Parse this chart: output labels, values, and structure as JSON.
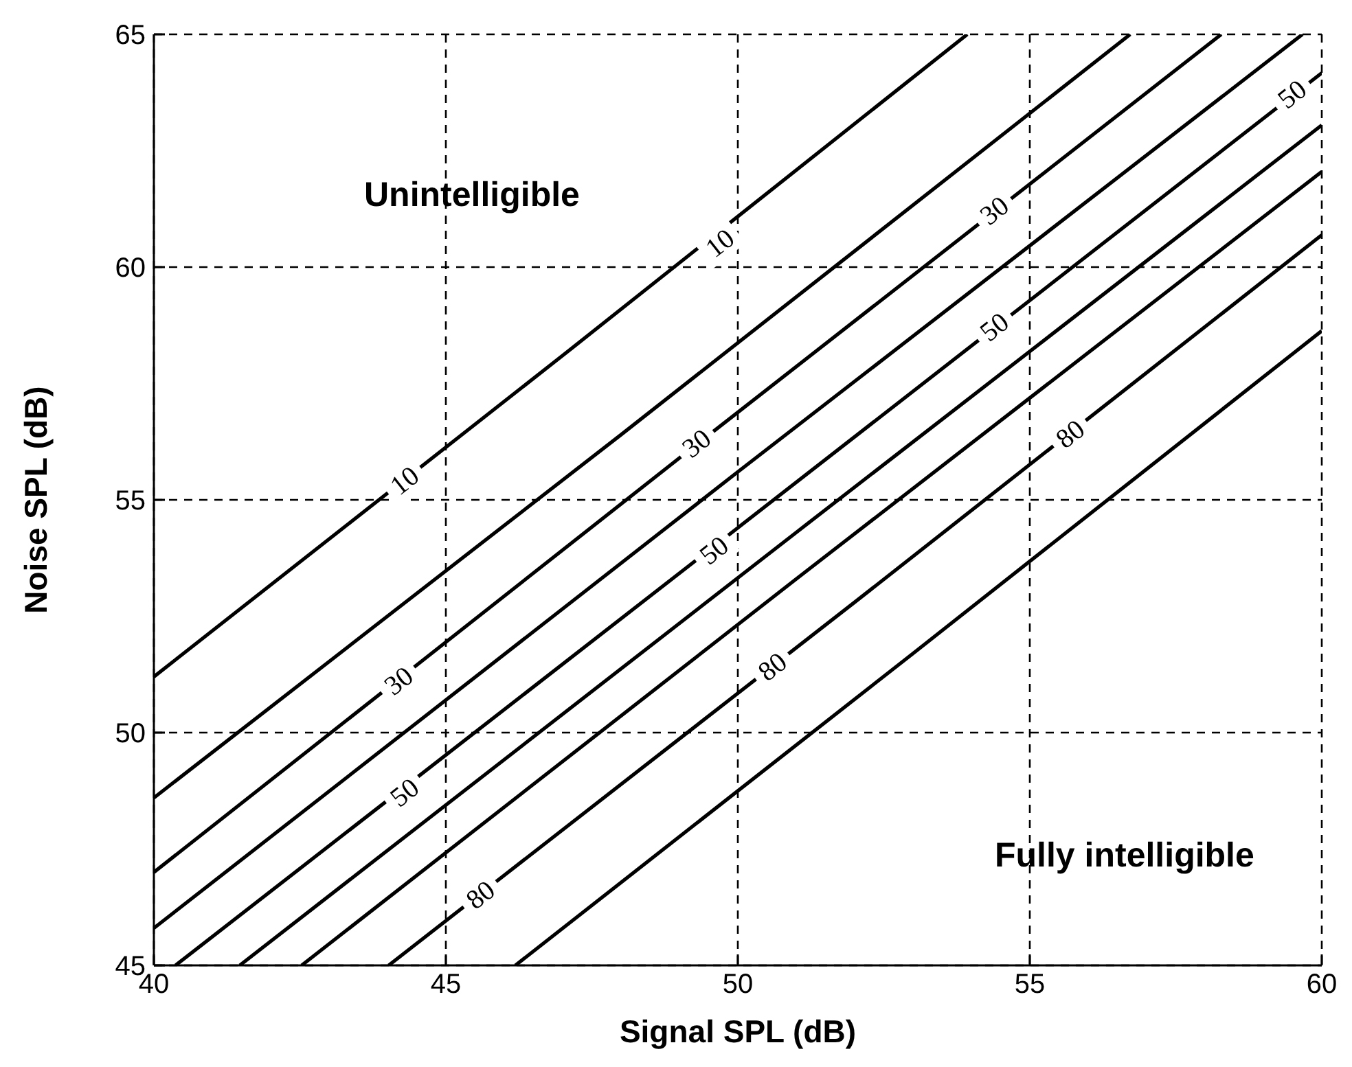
{
  "chart_data": {
    "type": "line",
    "xlabel": "Signal SPL (dB)",
    "ylabel": "Noise SPL (dB)",
    "xlim": [
      40,
      60
    ],
    "ylim": [
      45,
      65
    ],
    "xticks": [
      40,
      45,
      50,
      55,
      60
    ],
    "yticks": [
      45,
      50,
      55,
      60,
      65
    ],
    "grid": true,
    "marker": "none",
    "line_style": "solid",
    "series": [
      {
        "color": "#000000",
        "x": [
          40,
          47,
          53.93
        ],
        "values": [
          51.2,
          58.1,
          65
        ]
      },
      {
        "color": "#000000",
        "x": [
          40,
          48,
          56.72
        ],
        "values": [
          48.6,
          56.4,
          65
        ]
      },
      {
        "color": "#000000",
        "x": [
          40,
          49,
          58.28
        ],
        "values": [
          47.0,
          55.9,
          65
        ]
      },
      {
        "color": "#000000",
        "x": [
          40,
          50,
          59.67
        ],
        "values": [
          45.8,
          55.6,
          65
        ]
      },
      {
        "color": "#000000",
        "x": [
          40.37,
          50,
          60
        ],
        "values": [
          45,
          54.4,
          64.17
        ]
      },
      {
        "color": "#000000",
        "x": [
          41.47,
          51,
          60
        ],
        "values": [
          45,
          54.3,
          63.05
        ]
      },
      {
        "color": "#000000",
        "x": [
          42.53,
          51,
          60
        ],
        "values": [
          45,
          53.3,
          62.05
        ]
      },
      {
        "color": "#000000",
        "x": [
          44.02,
          52,
          60
        ],
        "values": [
          45,
          52.8,
          60.69
        ]
      },
      {
        "color": "#000000",
        "x": [
          46.19,
          53,
          60
        ],
        "values": [
          45,
          51.7,
          58.63
        ]
      }
    ],
    "annotations": [
      "Unintelligible",
      "Fully intelligible",
      {
        "text": "10",
        "x": 44.3,
        "y": 55.4
      },
      {
        "text": "10",
        "x": 49.7,
        "y": 60.5
      },
      {
        "text": "30",
        "x": 44.2,
        "y": 51.1
      },
      {
        "text": "30",
        "x": 49.3,
        "y": 56.2
      },
      {
        "text": "30",
        "x": 54.4,
        "y": 61.2
      },
      {
        "text": "50",
        "x": 44.3,
        "y": 48.7
      },
      {
        "text": "50",
        "x": 49.6,
        "y": 53.9
      },
      {
        "text": "50",
        "x": 54.4,
        "y": 58.7
      },
      {
        "text": "50",
        "x": 59.5,
        "y": 63.7
      },
      {
        "text": "80",
        "x": 45.6,
        "y": 46.5
      },
      {
        "text": "80",
        "x": 50.6,
        "y": 51.4
      },
      {
        "text": "80",
        "x": 55.7,
        "y": 56.4
      }
    ]
  }
}
